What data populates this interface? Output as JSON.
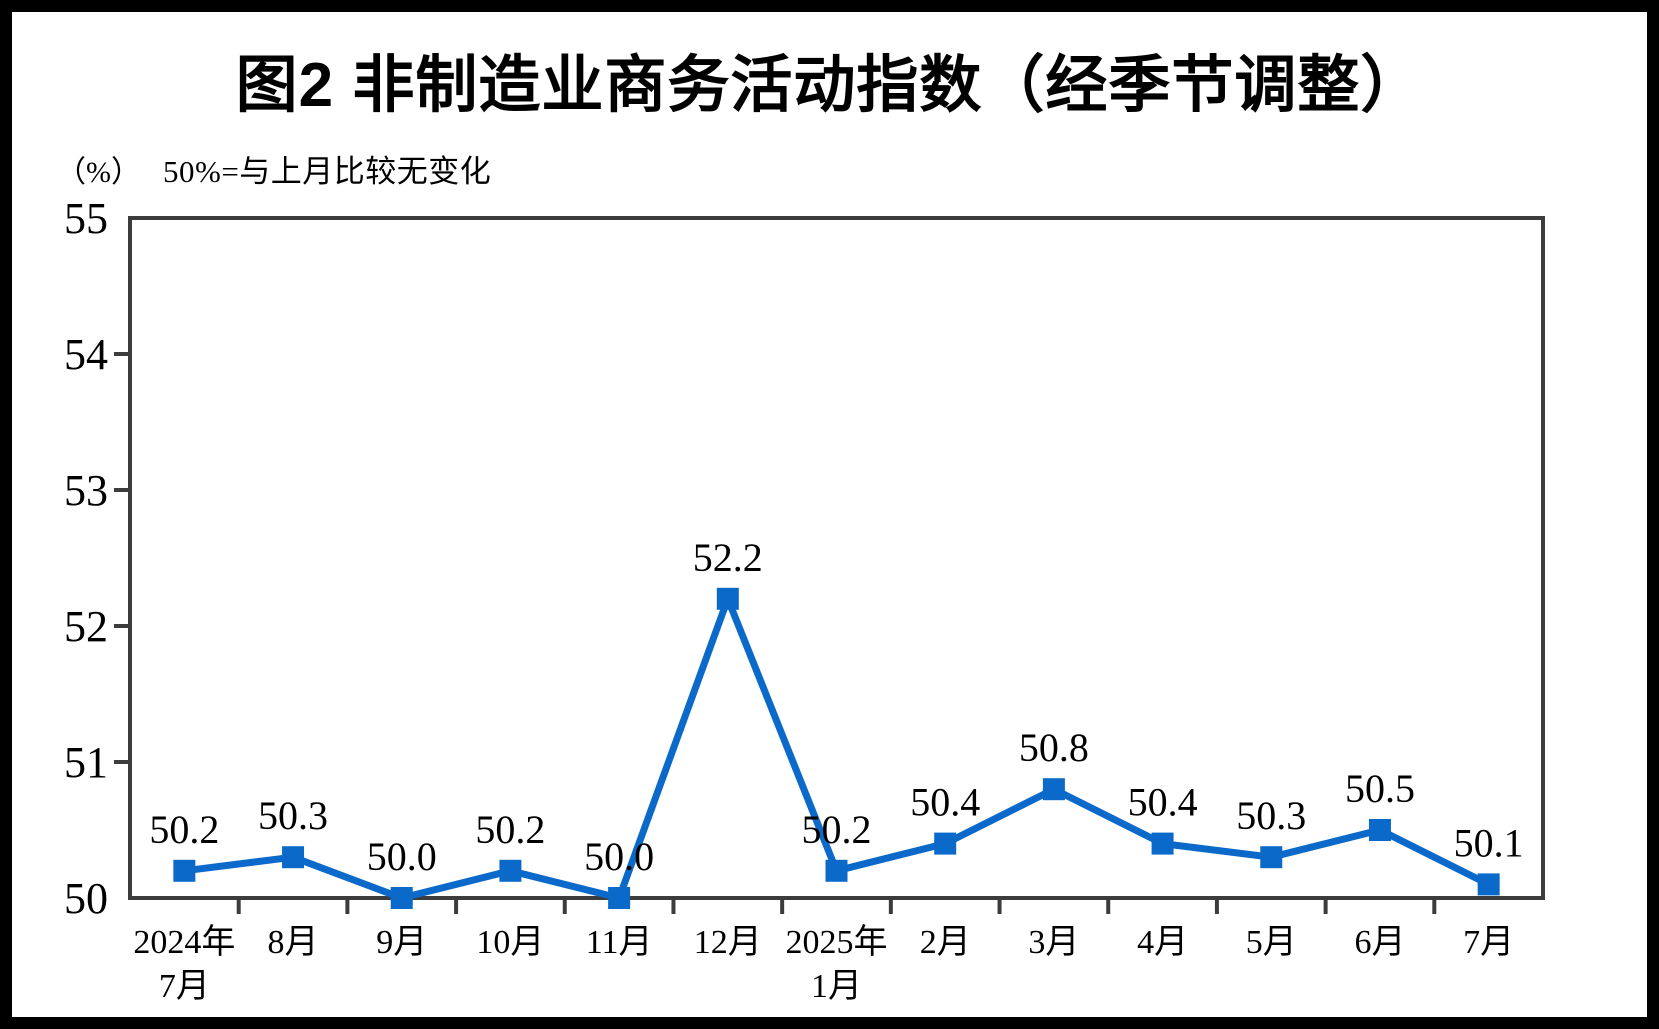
{
  "title": "图2 非制造业商务活动指数（经季节调整）",
  "y_axis_unit": "（%）",
  "note": "50%=与上月比较无变化",
  "chart_data": {
    "type": "line",
    "title": "图2 非制造业商务活动指数（经季节调整）",
    "ylabel": "（%）",
    "annotation": "50%=与上月比较无变化",
    "categories": [
      [
        "2024年",
        "7月"
      ],
      [
        "8月"
      ],
      [
        "9月"
      ],
      [
        "10月"
      ],
      [
        "11月"
      ],
      [
        "12月"
      ],
      [
        "2025年",
        "1月"
      ],
      [
        "2月"
      ],
      [
        "3月"
      ],
      [
        "4月"
      ],
      [
        "5月"
      ],
      [
        "6月"
      ],
      [
        "7月"
      ]
    ],
    "series": [
      {
        "name": "非制造业商务活动指数",
        "values": [
          50.2,
          50.3,
          50.0,
          50.2,
          50.0,
          52.2,
          50.2,
          50.4,
          50.8,
          50.4,
          50.3,
          50.5,
          50.1
        ],
        "data_labels": [
          "50.2",
          "50.3",
          "50.0",
          "50.2",
          "50.0",
          "52.2",
          "50.2",
          "50.4",
          "50.8",
          "50.4",
          "50.3",
          "50.5",
          "50.1"
        ]
      }
    ],
    "ylim": [
      50,
      55
    ],
    "yticks": [
      "55",
      "54",
      "53",
      "52",
      "51",
      "50"
    ],
    "grid": false,
    "legend": "none",
    "marker": "square",
    "colors": {
      "line": "#0B6AC9",
      "marker": "#0B6AC9",
      "axis": "#3C3C3C",
      "text": "#000000",
      "background": "#FFFFFF",
      "page_border": "#000000"
    }
  }
}
